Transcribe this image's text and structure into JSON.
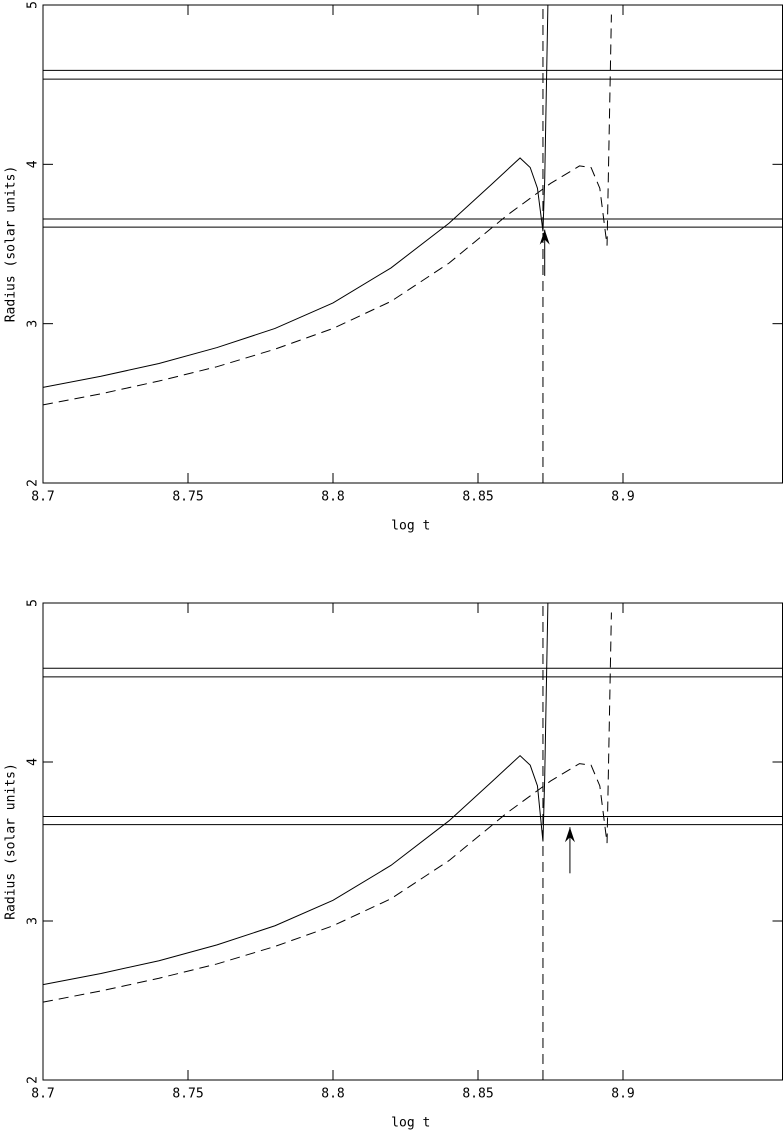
{
  "chart_data": [
    {
      "type": "line",
      "xlabel": "log t",
      "ylabel": "Radius (solar units)",
      "xlim": [
        8.7,
        8.955
      ],
      "ylim": [
        2,
        5
      ],
      "xticks": [
        8.7,
        8.75,
        8.8,
        8.85,
        8.9
      ],
      "yticks": [
        2,
        3,
        4,
        5
      ],
      "hlines": [
        4.59,
        4.535,
        3.657,
        3.606
      ],
      "series": [
        {
          "color": "#000000",
          "dash": false,
          "x": [
            8.7,
            8.72,
            8.74,
            8.76,
            8.78,
            8.8,
            8.82,
            8.84,
            8.855,
            8.8645,
            8.868,
            8.8705,
            8.8724,
            8.873,
            8.8741
          ],
          "values": [
            2.6,
            2.67,
            2.75,
            2.85,
            2.97,
            3.13,
            3.35,
            3.63,
            3.88,
            4.04,
            3.98,
            3.85,
            3.58,
            3.9,
            5.0
          ]
        },
        {
          "color": "#000000",
          "dash": true,
          "x": [
            8.7,
            8.72,
            8.74,
            8.76,
            8.78,
            8.8,
            8.82,
            8.84,
            8.86,
            8.875,
            8.885,
            8.889,
            8.892,
            8.8945,
            8.896
          ],
          "values": [
            2.49,
            2.56,
            2.64,
            2.73,
            2.84,
            2.97,
            3.14,
            3.38,
            3.68,
            3.88,
            3.99,
            3.98,
            3.85,
            3.49,
            4.94
          ]
        },
        {
          "color": "#000000",
          "dash": true,
          "x": [
            8.8724,
            8.8724
          ],
          "values": [
            2,
            5
          ]
        }
      ],
      "arrow": {
        "x": 8.873,
        "y": [
          3.3,
          3.59
        ]
      }
    },
    {
      "type": "line",
      "xlabel": "log t",
      "ylabel": "Radius (solar units)",
      "xlim": [
        8.7,
        8.955
      ],
      "ylim": [
        2,
        5
      ],
      "xticks": [
        8.7,
        8.75,
        8.8,
        8.85,
        8.9
      ],
      "yticks": [
        2,
        3,
        4,
        5
      ],
      "hlines": [
        4.59,
        4.535,
        3.657,
        3.606
      ],
      "series": [
        {
          "color": "#000000",
          "dash": false,
          "x": [
            8.7,
            8.72,
            8.74,
            8.76,
            8.78,
            8.8,
            8.82,
            8.84,
            8.855,
            8.8645,
            8.868,
            8.8705,
            8.8724,
            8.873,
            8.8741
          ],
          "values": [
            2.6,
            2.67,
            2.75,
            2.85,
            2.97,
            3.13,
            3.35,
            3.63,
            3.88,
            4.04,
            3.98,
            3.85,
            3.5,
            3.9,
            5.0
          ]
        },
        {
          "color": "#000000",
          "dash": true,
          "x": [
            8.7,
            8.72,
            8.74,
            8.76,
            8.78,
            8.8,
            8.82,
            8.84,
            8.86,
            8.875,
            8.885,
            8.889,
            8.892,
            8.8945,
            8.896
          ],
          "values": [
            2.49,
            2.56,
            2.64,
            2.73,
            2.84,
            2.97,
            3.14,
            3.38,
            3.68,
            3.88,
            3.99,
            3.98,
            3.85,
            3.49,
            4.94
          ]
        },
        {
          "color": "#000000",
          "dash": true,
          "x": [
            8.8724,
            8.8724
          ],
          "values": [
            2,
            5
          ]
        }
      ],
      "arrow": {
        "x": 8.8817,
        "y": [
          3.3,
          3.59
        ]
      }
    }
  ]
}
